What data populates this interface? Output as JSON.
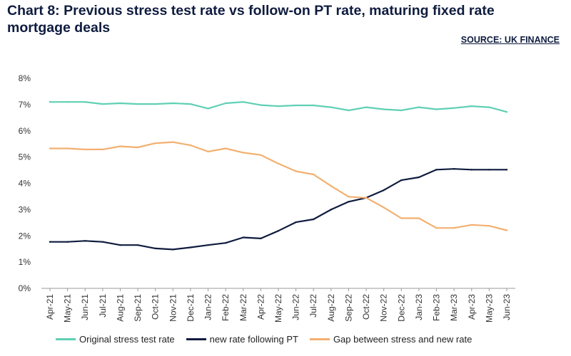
{
  "header": {
    "title": "Chart 8: Previous stress test rate vs follow-on PT rate, maturing fixed rate mortgage deals",
    "source": "SOURCE: UK FINANCE"
  },
  "chart_data": {
    "type": "line",
    "title": "Chart 8: Previous stress test rate vs follow-on PT rate, maturing fixed rate mortgage deals",
    "xlabel": "",
    "ylabel": "",
    "ylim": [
      0,
      8
    ],
    "yticks": [
      "0%",
      "1%",
      "2%",
      "3%",
      "4%",
      "5%",
      "6%",
      "7%",
      "8%"
    ],
    "grid": false,
    "legend_position": "bottom",
    "categories": [
      "Apr-21",
      "May-21",
      "Jun-21",
      "Jul-21",
      "Aug-21",
      "Sep-21",
      "Oct-21",
      "Nov-21",
      "Dec-21",
      "Jan-22",
      "Feb-22",
      "Mar-22",
      "Apr-22",
      "May-22",
      "Jun-22",
      "Jul-22",
      "Aug-22",
      "Sep-22",
      "Oct-22",
      "Nov-22",
      "Dec-22",
      "Jan-23",
      "Feb-23",
      "Mar-23",
      "Apr-23",
      "May-23",
      "Jun-23"
    ],
    "series": [
      {
        "name": "Original stress test rate",
        "color": "#5fd0b4",
        "values": [
          7.1,
          7.1,
          7.1,
          7.02,
          7.05,
          7.02,
          7.02,
          7.05,
          7.02,
          6.85,
          7.05,
          7.1,
          6.98,
          6.94,
          6.97,
          6.97,
          6.9,
          6.78,
          6.9,
          6.82,
          6.78,
          6.9,
          6.82,
          6.87,
          6.94,
          6.9,
          6.72
        ]
      },
      {
        "name": "new rate following PT",
        "color": "#0f1c3f",
        "values": [
          1.77,
          1.77,
          1.81,
          1.77,
          1.65,
          1.65,
          1.52,
          1.48,
          1.56,
          1.65,
          1.73,
          1.94,
          1.9,
          2.19,
          2.52,
          2.63,
          3.0,
          3.3,
          3.45,
          3.74,
          4.12,
          4.23,
          4.52,
          4.55,
          4.52,
          4.52,
          4.52
        ]
      },
      {
        "name": "Gap between stress and new rate",
        "color": "#f2b070",
        "values": [
          5.33,
          5.33,
          5.29,
          5.29,
          5.41,
          5.37,
          5.53,
          5.57,
          5.45,
          5.21,
          5.33,
          5.17,
          5.08,
          4.75,
          4.46,
          4.34,
          3.9,
          3.49,
          3.45,
          3.08,
          2.67,
          2.67,
          2.3,
          2.3,
          2.42,
          2.38,
          2.21
        ]
      }
    ]
  }
}
